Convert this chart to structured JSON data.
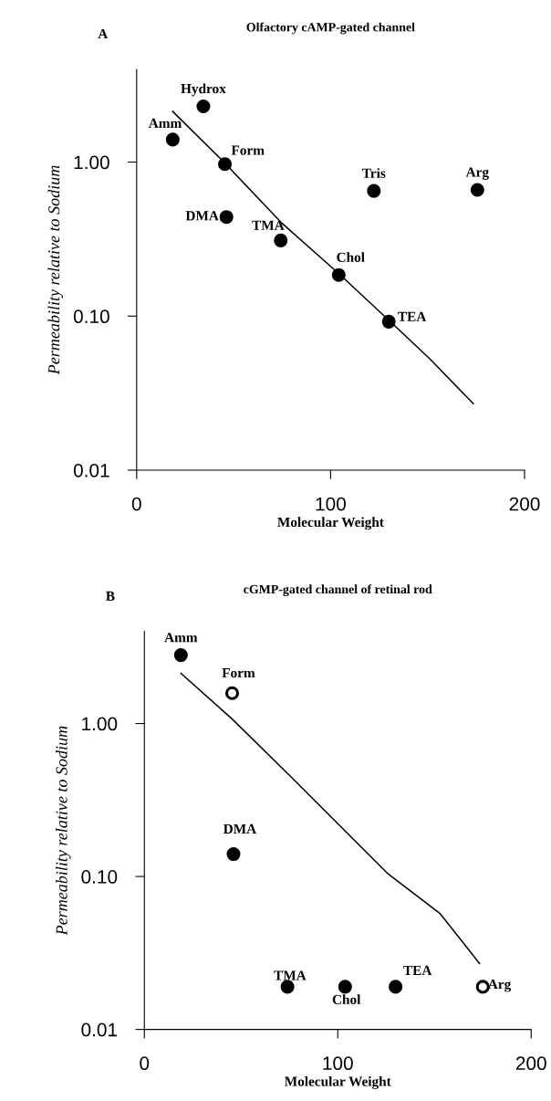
{
  "chart_data": [
    {
      "type": "scatter",
      "title": "Olfactory cAMP-gated channel",
      "xlabel": "Molecular Weight",
      "ylabel": "Permeability relative to Sodium",
      "log": "y",
      "xlim": [
        0,
        200
      ],
      "xticks": [
        0,
        100,
        200
      ],
      "ylim": [
        0.01,
        4.0
      ],
      "yticks": [
        {
          "value": 0.01,
          "label": "0.01"
        },
        {
          "value": 0.1,
          "label": "0.10"
        },
        {
          "value": 1,
          "label": "1.00"
        }
      ],
      "series": [
        {
          "marker": "circle",
          "color": "#000000",
          "x": [
            18.6,
            34.4,
            45.5,
            46.3,
            74.3,
            104.2,
            130,
            122.3,
            175.7
          ],
          "values": [
            1.4,
            2.3,
            0.97,
            0.44,
            0.31,
            0.185,
            0.092,
            0.65,
            0.66
          ]
        },
        {
          "type": "line",
          "marker": "none",
          "line_style": "solid",
          "color": "#000000",
          "x": [
            18.6,
            45,
            75,
            104,
            130,
            151,
            173.6
          ],
          "values": [
            2.13,
            1.0,
            0.4,
            0.19,
            0.094,
            0.053,
            0.027
          ]
        }
      ],
      "annotations": [
        "A",
        {
          "text": "Amm",
          "x": 18.6,
          "y": 1.4
        },
        {
          "text": "Hydrox",
          "x": 34.4,
          "y": 2.3
        },
        {
          "text": "Form",
          "x": 45.5,
          "y": 0.97
        },
        {
          "text": "DMA",
          "x": 46.3,
          "y": 0.44
        },
        {
          "text": "TMA",
          "x": 74.3,
          "y": 0.31
        },
        {
          "text": "Chol",
          "x": 104.2,
          "y": 0.185
        },
        {
          "text": "TEA",
          "x": 130,
          "y": 0.092
        },
        {
          "text": "Tris",
          "x": 122.3,
          "y": 0.65
        },
        {
          "text": "Arg",
          "x": 175.7,
          "y": 0.66
        }
      ]
    },
    {
      "type": "scatter",
      "title": "cGMP-gated channel of retinal rod",
      "xlabel": "Molecular Weight",
      "ylabel": "Permeability relative to Sodium",
      "log": "y",
      "xlim": [
        0,
        200
      ],
      "xticks": [
        0,
        100,
        200
      ],
      "ylim": [
        0.01,
        4.0
      ],
      "yticks": [
        {
          "value": 0.01,
          "label": "0.01"
        },
        {
          "value": 0.1,
          "label": "0.10"
        },
        {
          "value": 1,
          "label": "1.00"
        }
      ],
      "series": [
        {
          "marker": "circle",
          "color": "#000000",
          "x": [
            18.9,
            46.1,
            74,
            103.8,
            129.9
          ],
          "values": [
            2.8,
            0.14,
            0.019,
            0.019,
            0.019
          ]
        },
        {
          "marker": "circle",
          "color": "#ffffff",
          "x": [
            45.4,
            175
          ],
          "values": [
            1.58,
            0.019
          ]
        },
        {
          "type": "line",
          "marker": "none",
          "line_style": "solid",
          "color": "#000000",
          "x": [
            18.9,
            45.4,
            74.9,
            126,
            153,
            173.3
          ],
          "values": [
            2.13,
            1.07,
            0.46,
            0.104,
            0.057,
            0.027
          ]
        }
      ],
      "annotations": [
        "B",
        {
          "text": "Amm",
          "x": 18.9,
          "y": 2.8
        },
        {
          "text": "Form",
          "x": 45.4,
          "y": 1.58
        },
        {
          "text": "DMA",
          "x": 46.1,
          "y": 0.14
        },
        {
          "text": "TMA",
          "x": 74,
          "y": 0.019
        },
        {
          "text": "Chol",
          "x": 103.8,
          "y": 0.019
        },
        {
          "text": "TEA",
          "x": 129.9,
          "y": 0.019
        },
        {
          "text": "Arg",
          "x": 175,
          "y": 0.019
        }
      ]
    }
  ]
}
